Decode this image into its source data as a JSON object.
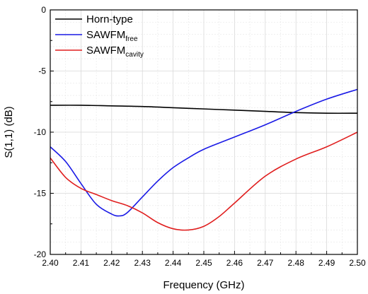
{
  "chart_data": {
    "type": "line",
    "xlabel": "Frequency (GHz)",
    "ylabel": "S(1,1) (dB)",
    "xlim": [
      2.4,
      2.5
    ],
    "ylim": [
      -20,
      0
    ],
    "xticks": [
      "2.40",
      "2.41",
      "2.42",
      "2.43",
      "2.44",
      "2.45",
      "2.46",
      "2.47",
      "2.48",
      "2.49",
      "2.50"
    ],
    "yticks": [
      "0",
      "-5",
      "-10",
      "-15",
      "-20"
    ],
    "grid": true,
    "legend_position": "top-left",
    "series": [
      {
        "name": "Horn-type",
        "name_main": "Horn-type",
        "name_sub": "",
        "color": "#000000",
        "x": [
          2.4,
          2.41,
          2.42,
          2.43,
          2.44,
          2.45,
          2.46,
          2.47,
          2.48,
          2.49,
          2.5
        ],
        "y": [
          -7.8,
          -7.8,
          -7.85,
          -7.9,
          -8.0,
          -8.1,
          -8.2,
          -8.3,
          -8.4,
          -8.45,
          -8.45
        ]
      },
      {
        "name": "SAWFM free",
        "name_main": "SAWFM",
        "name_sub": "free",
        "color": "#1a1ae6",
        "x": [
          2.4,
          2.405,
          2.41,
          2.415,
          2.42,
          2.4225,
          2.425,
          2.43,
          2.435,
          2.44,
          2.445,
          2.45,
          2.46,
          2.47,
          2.48,
          2.49,
          2.5
        ],
        "y": [
          -11.2,
          -12.4,
          -14.2,
          -15.9,
          -16.7,
          -16.85,
          -16.6,
          -15.3,
          -14.0,
          -12.9,
          -12.1,
          -11.4,
          -10.4,
          -9.4,
          -8.3,
          -7.3,
          -6.5
        ]
      },
      {
        "name": "SAWFM cavity",
        "name_main": "SAWFM",
        "name_sub": "cavity",
        "color": "#e01e1e",
        "x": [
          2.4,
          2.405,
          2.41,
          2.415,
          2.42,
          2.425,
          2.43,
          2.435,
          2.44,
          2.445,
          2.45,
          2.455,
          2.46,
          2.47,
          2.48,
          2.49,
          2.5
        ],
        "y": [
          -12.1,
          -13.7,
          -14.6,
          -15.1,
          -15.6,
          -16.0,
          -16.6,
          -17.4,
          -17.9,
          -18.0,
          -17.7,
          -16.9,
          -15.8,
          -13.6,
          -12.2,
          -11.2,
          -10.0
        ]
      }
    ]
  }
}
